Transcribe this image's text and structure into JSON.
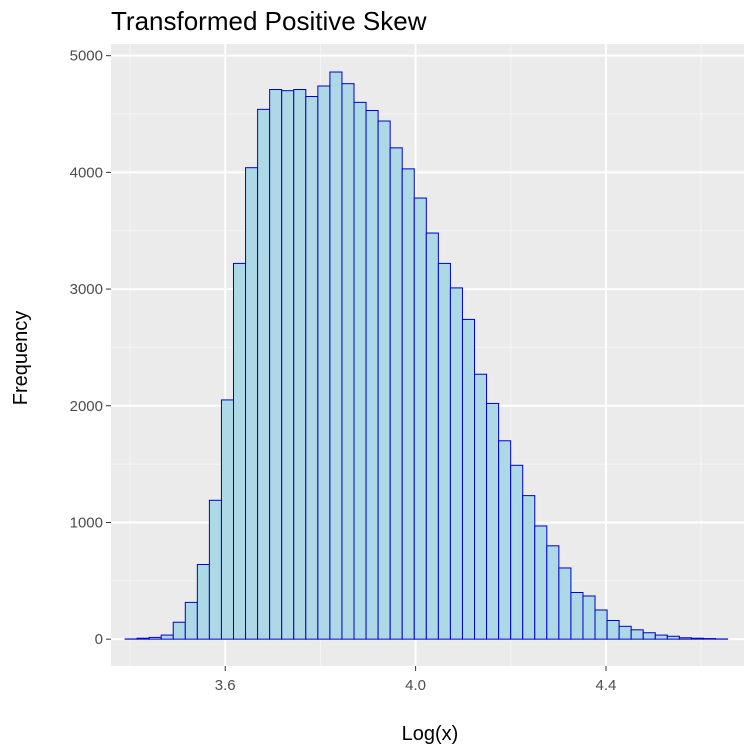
{
  "chart_data": {
    "type": "bar",
    "title": "Transformed Positive Skew",
    "xlabel": "Log(x)",
    "ylabel": "Frequency",
    "xlim": [
      3.36,
      4.69
    ],
    "ylim": [
      -230,
      5100
    ],
    "x_ticks": [
      3.6,
      4.0,
      4.4
    ],
    "x_tick_labels": [
      "3.6",
      "4.0",
      "4.4"
    ],
    "y_ticks": [
      0,
      1000,
      2000,
      3000,
      4000,
      5000
    ],
    "y_tick_labels": [
      "0",
      "1000",
      "2000",
      "3000",
      "4000",
      "5000"
    ],
    "grid": true,
    "bin_width": 0.02532,
    "bin_start": 3.3895,
    "values": [
      2,
      8,
      15,
      35,
      145,
      315,
      640,
      1190,
      2050,
      3220,
      4040,
      4540,
      4710,
      4700,
      4710,
      4650,
      4740,
      4860,
      4760,
      4600,
      4530,
      4440,
      4210,
      4030,
      3780,
      3480,
      3220,
      3010,
      2740,
      2270,
      2020,
      1700,
      1490,
      1230,
      970,
      800,
      610,
      400,
      370,
      250,
      160,
      110,
      80,
      55,
      35,
      25,
      12,
      8,
      5,
      2
    ],
    "colors": {
      "bar_fill": "#add8e6",
      "bar_stroke": "#0000cd",
      "panel_bg": "#ebebeb",
      "grid_major": "#ffffff",
      "grid_minor": "#f5f5f5",
      "tick": "#333333"
    }
  }
}
